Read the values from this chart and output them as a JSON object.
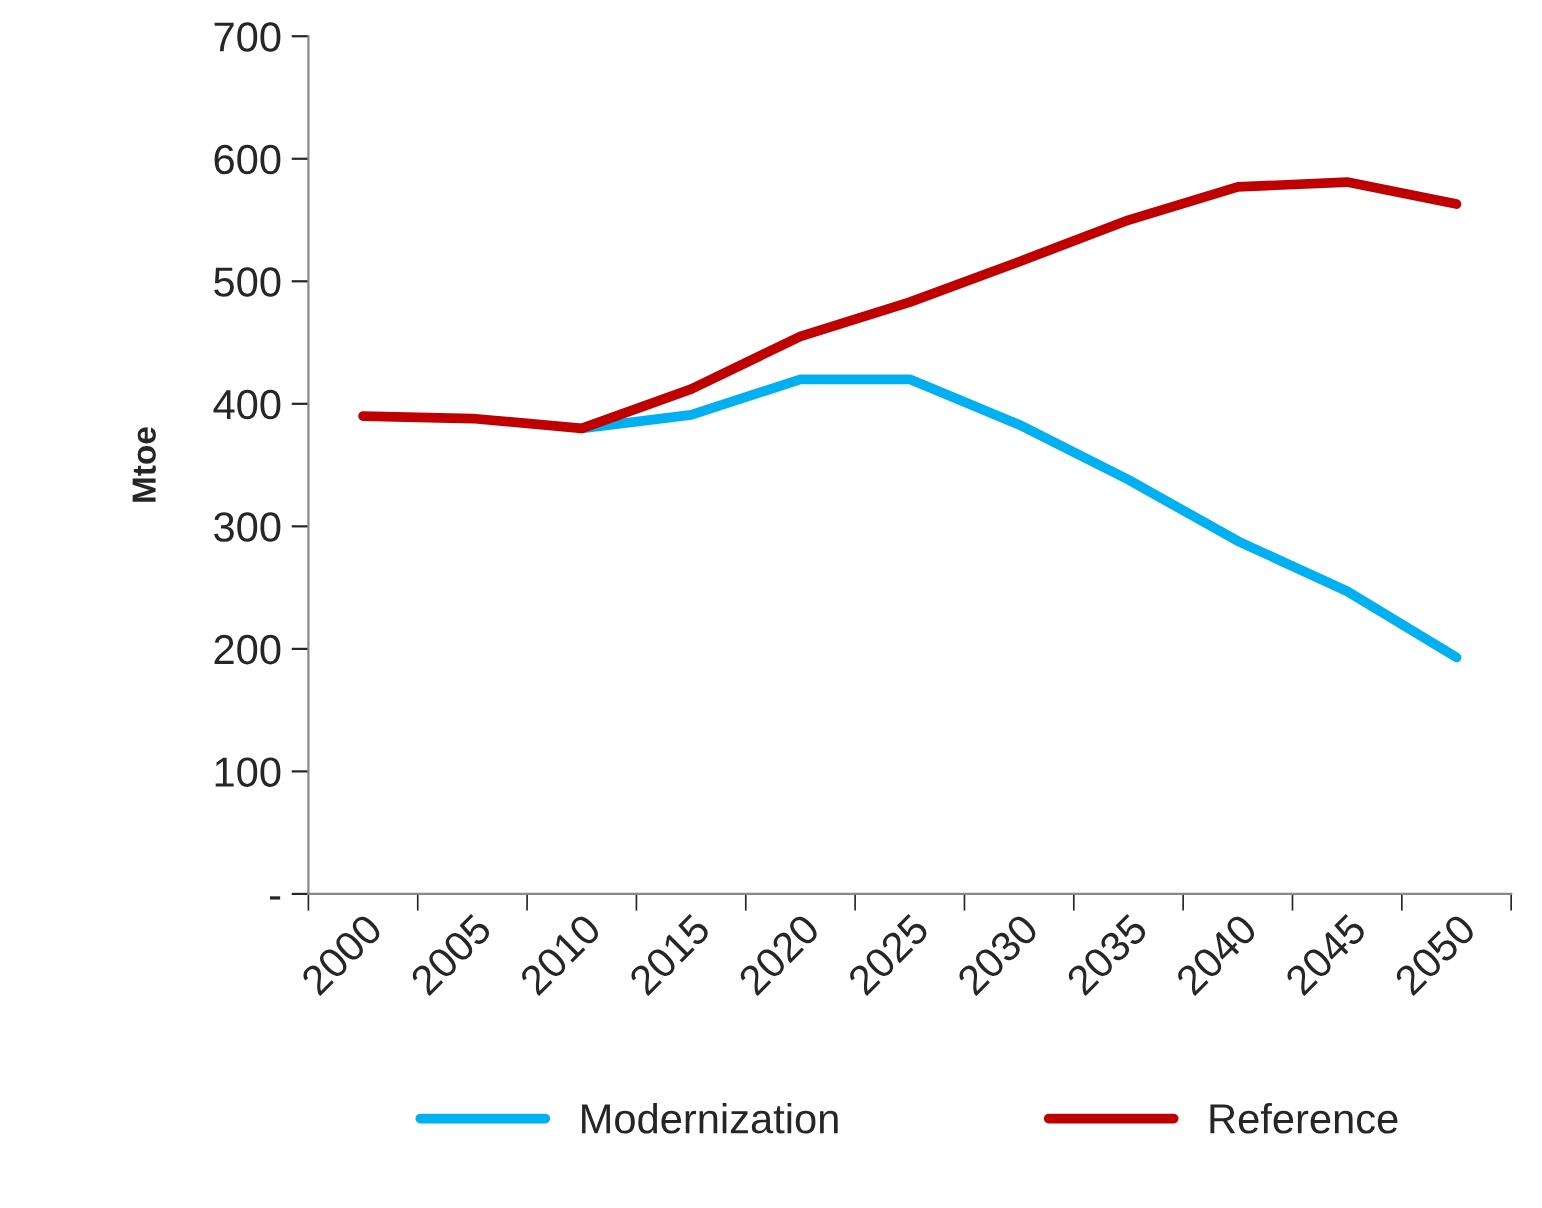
{
  "chart_data": {
    "type": "line",
    "ylabel": "Mtoe",
    "categories": [
      "2000",
      "2005",
      "2010",
      "2015",
      "2020",
      "2025",
      "2030",
      "2035",
      "2040",
      "2045",
      "2050"
    ],
    "series": [
      {
        "name": "Modernization",
        "color": "#00b0f0",
        "values": [
          null,
          null,
          380,
          391,
          420,
          420,
          383,
          338,
          288,
          247,
          193
        ]
      },
      {
        "name": "Reference",
        "color": "#c00000",
        "values": [
          390,
          388,
          380,
          412,
          455,
          483,
          516,
          550,
          577,
          581,
          563
        ]
      }
    ],
    "ylim": [
      0,
      700
    ],
    "yticks": [
      {
        "value": 0,
        "label": "-"
      },
      100,
      200,
      300,
      400,
      500,
      600,
      700
    ],
    "grid": false,
    "legend": "bottom",
    "marker": "none",
    "line_style": "solid"
  }
}
